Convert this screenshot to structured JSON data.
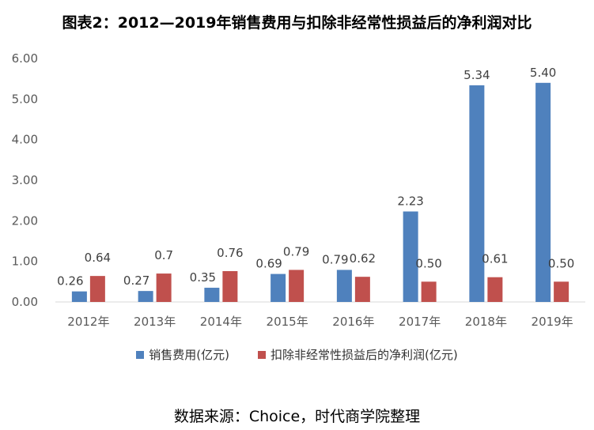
{
  "chart_data": {
    "type": "bar",
    "title": "图表2：2012—2019年销售费用与扣除非经常性损益后的净利润对比",
    "categories": [
      "2012年",
      "2013年",
      "2014年",
      "2015年",
      "2016年",
      "2017年",
      "2018年",
      "2019年"
    ],
    "series": [
      {
        "name": "销售费用(亿元)",
        "color": "#4f81bd",
        "values": [
          0.26,
          0.27,
          0.35,
          0.69,
          0.79,
          2.23,
          5.34,
          5.4
        ],
        "labels": [
          "0.26",
          "0.27",
          "0.35",
          "0.69",
          "0.79",
          "2.23",
          "5.34",
          "5.40"
        ]
      },
      {
        "name": "扣除非经常性损益后的净利润(亿元)",
        "color": "#c0504d",
        "values": [
          0.64,
          0.7,
          0.76,
          0.79,
          0.62,
          0.5,
          0.61,
          0.5
        ],
        "labels": [
          "0.64",
          "0.7",
          "0.76",
          "0.79",
          "0.62",
          "0.50",
          "0.61",
          "0.50"
        ]
      }
    ],
    "yticks": [
      "0.00",
      "1.00",
      "2.00",
      "3.00",
      "4.00",
      "5.00",
      "6.00"
    ],
    "ylim": [
      0,
      6
    ],
    "grid": false,
    "legend_position": "bottom",
    "source": "数据来源：Choice，时代商学院整理"
  }
}
